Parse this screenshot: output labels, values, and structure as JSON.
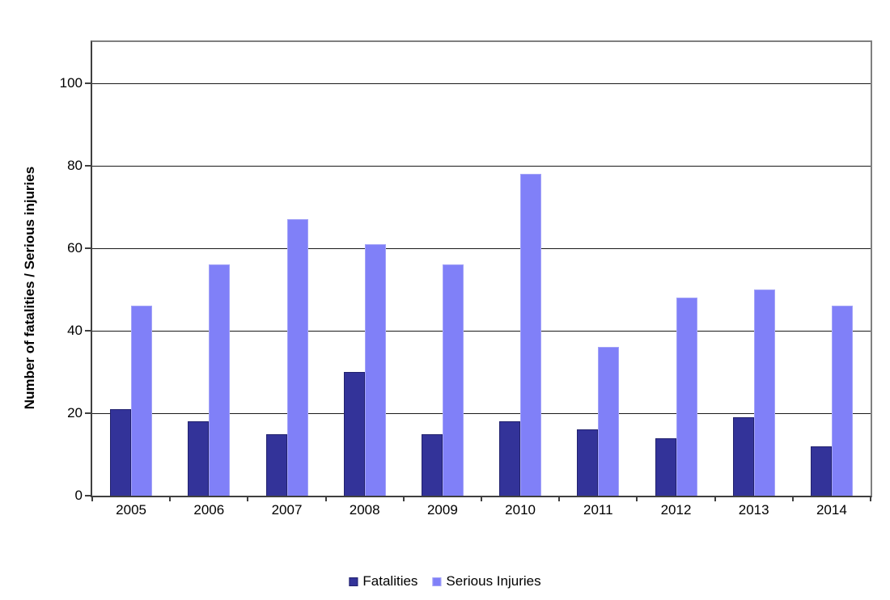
{
  "chart_data": {
    "type": "bar",
    "title": "",
    "categories": [
      "2005",
      "2006",
      "2007",
      "2008",
      "2009",
      "2010",
      "2011",
      "2012",
      "2013",
      "2014"
    ],
    "series": [
      {
        "name": "Fatalities",
        "values": [
          21,
          18,
          15,
          30,
          15,
          18,
          16,
          14,
          19,
          12
        ],
        "color": "#333399",
        "border_color": "#22226E"
      },
      {
        "name": "Serious Injuries",
        "values": [
          46,
          56,
          67,
          61,
          56,
          78,
          36,
          48,
          50,
          46
        ],
        "color": "#8080F8",
        "border_color": "#A3A3F7"
      }
    ],
    "xlabel": "",
    "ylabel": "Number of fatalities / Serious injuries",
    "yticks": [
      0,
      20,
      40,
      60,
      80,
      100
    ],
    "ylim": [
      0,
      110
    ],
    "grid": true,
    "legend_position": "bottom",
    "colors": {
      "gridline": "#1A1A1A",
      "axis_dark": "#3F3F3F",
      "axis_light": "#7F7F7F",
      "background": "#FFFFFF",
      "text": "#000000"
    }
  }
}
